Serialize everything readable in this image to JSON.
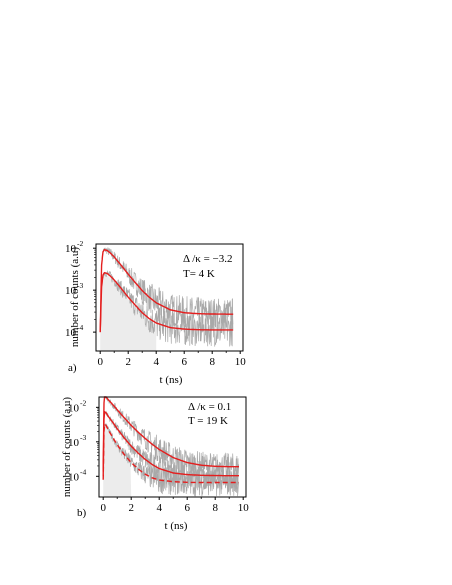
{
  "chart_data": [
    {
      "type": "line",
      "panel_label": "a)",
      "xlabel": "t (ns)",
      "ylabel": "number of counts (a.u)",
      "xlim": [
        -0.3,
        10.2
      ],
      "ylim_log10": [
        -4.45,
        -1.9
      ],
      "yscale": "log",
      "x_ticks": [
        "0",
        "2",
        "4",
        "6",
        "8",
        "10"
      ],
      "y_ticks": [
        {
          "base": "10",
          "exp": "-2"
        },
        {
          "base": "10",
          "exp": "-3"
        },
        {
          "base": "10",
          "exp": "-4"
        }
      ],
      "annotations": [
        "Δ /κ = −3.2",
        "T= 4 K"
      ],
      "grid": false,
      "series": [
        {
          "style": "solid",
          "color": "#e41e1e",
          "x": [
            0.0,
            0.1,
            0.2,
            0.3,
            0.5,
            0.7,
            1.0,
            1.5,
            2.0,
            2.5,
            3.0,
            3.5,
            4.0,
            5.0,
            6.0,
            7.0,
            8.0,
            9.0,
            9.5
          ],
          "y": [
            0.0001,
            0.004,
            0.0082,
            0.0092,
            0.0088,
            0.0078,
            0.0062,
            0.0039,
            0.0024,
            0.00152,
            0.00098,
            0.00068,
            0.0005,
            0.00034,
            0.00029,
            0.000275,
            0.00027,
            0.000268,
            0.000267
          ]
        },
        {
          "style": "solid",
          "color": "#e41e1e",
          "x": [
            0.0,
            0.1,
            0.2,
            0.3,
            0.5,
            0.7,
            1.0,
            1.5,
            2.0,
            2.5,
            3.0,
            3.5,
            4.0,
            5.0,
            6.0,
            7.0,
            8.0,
            9.0,
            9.5
          ],
          "y": [
            0.0001,
            0.0012,
            0.0023,
            0.0026,
            0.0025,
            0.0022,
            0.00175,
            0.0011,
            0.00068,
            0.00044,
            0.00029,
            0.00021,
            0.000165,
            0.000128,
            0.000118,
            0.000114,
            0.000113,
            0.000113,
            0.000113
          ]
        }
      ]
    },
    {
      "type": "line",
      "panel_label": "b)",
      "xlabel": "t (ns)",
      "ylabel": "number of counts (a.u)",
      "xlim": [
        -0.3,
        10.2
      ],
      "ylim_log10": [
        -4.6,
        -1.7
      ],
      "yscale": "log",
      "x_ticks": [
        "0",
        "2",
        "4",
        "6",
        "8",
        "10"
      ],
      "y_ticks": [
        {
          "base": "10",
          "exp": "-2"
        },
        {
          "base": "10",
          "exp": "-3"
        },
        {
          "base": "10",
          "exp": "-4"
        }
      ],
      "annotations": [
        "Δ /κ = 0.1",
        "T = 19 K"
      ],
      "grid": false,
      "series": [
        {
          "style": "solid",
          "color": "#e41e1e",
          "x": [
            0.0,
            0.05,
            0.1,
            0.2,
            0.4,
            0.7,
            1.0,
            1.5,
            2.0,
            2.5,
            3.0,
            3.5,
            4.0,
            5.0,
            6.0,
            7.0,
            8.0,
            9.0,
            9.7
          ],
          "y": [
            0.00015,
            0.012,
            0.021,
            0.02,
            0.016,
            0.0118,
            0.0085,
            0.005,
            0.003,
            0.0019,
            0.00125,
            0.00085,
            0.0006,
            0.00035,
            0.00025,
            0.00021,
            0.000195,
            0.00019,
            0.00019
          ]
        },
        {
          "style": "solid",
          "color": "#e41e1e",
          "x": [
            0.0,
            0.05,
            0.1,
            0.2,
            0.4,
            0.7,
            1.0,
            1.5,
            2.0,
            2.5,
            3.0,
            3.5,
            4.0,
            5.0,
            6.0,
            7.0,
            8.0,
            9.0,
            9.7
          ],
          "y": [
            0.0001,
            0.004,
            0.0075,
            0.007,
            0.0052,
            0.0036,
            0.0024,
            0.0013,
            0.00075,
            0.00047,
            0.00031,
            0.00022,
            0.000168,
            0.000125,
            0.000112,
            0.000107,
            0.000105,
            0.000104,
            0.000104
          ]
        },
        {
          "style": "dashed",
          "color": "#e41e1e",
          "x": [
            0.0,
            0.05,
            0.1,
            0.2,
            0.4,
            0.7,
            1.0,
            1.5,
            2.0,
            2.5,
            3.0,
            3.5,
            4.0,
            5.0,
            6.0,
            7.0,
            8.0,
            9.0,
            9.7
          ],
          "y": [
            8e-05,
            0.0018,
            0.0032,
            0.003,
            0.0021,
            0.0013,
            0.00082,
            0.00043,
            0.00025,
            0.000162,
            0.000115,
            9e-05,
            7.8e-05,
            7e-05,
            6.7e-05,
            6.6e-05,
            6.6e-05,
            6.6e-05,
            6.6e-05
          ]
        }
      ]
    }
  ]
}
